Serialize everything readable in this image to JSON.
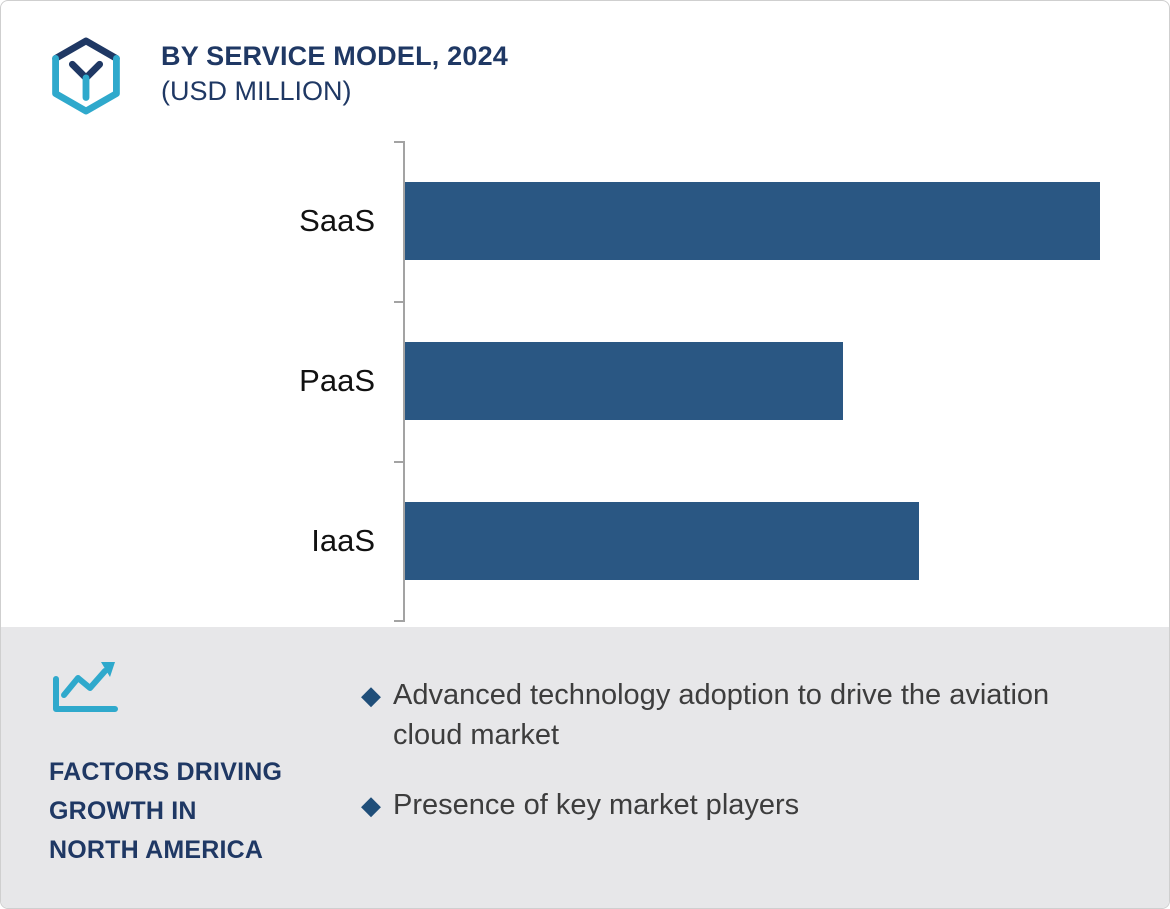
{
  "header": {
    "title": "BY SERVICE MODEL, 2024",
    "subtitle": "(USD MILLION)"
  },
  "chart_data": {
    "type": "bar",
    "orientation": "horizontal",
    "title": "BY SERVICE MODEL, 2024",
    "subtitle": "(USD MILLION)",
    "categories": [
      "SaaS",
      "PaaS",
      "IaaS"
    ],
    "values": [
      100,
      63,
      74
    ],
    "values_unit": "percent of longest bar (numeric axis values not shown in image)",
    "xlim": [
      0,
      100
    ],
    "grid": false,
    "legend": false,
    "axis_ticks": 4
  },
  "factors": {
    "heading_lines": [
      "FACTORS DRIVING",
      "GROWTH IN",
      "NORTH AMERICA"
    ],
    "bullet_marker": "◆",
    "bullets": [
      "Advanced technology adoption to drive the aviation cloud market",
      "Presence of key market players"
    ]
  },
  "colors": {
    "bar": "#2A5783",
    "title_navy": "#1F3864",
    "accent_teal": "#2FA9CC",
    "diamond": "#1F4E79",
    "panel_bg": "#E7E7E9",
    "body_text": "#3d3d3d"
  }
}
